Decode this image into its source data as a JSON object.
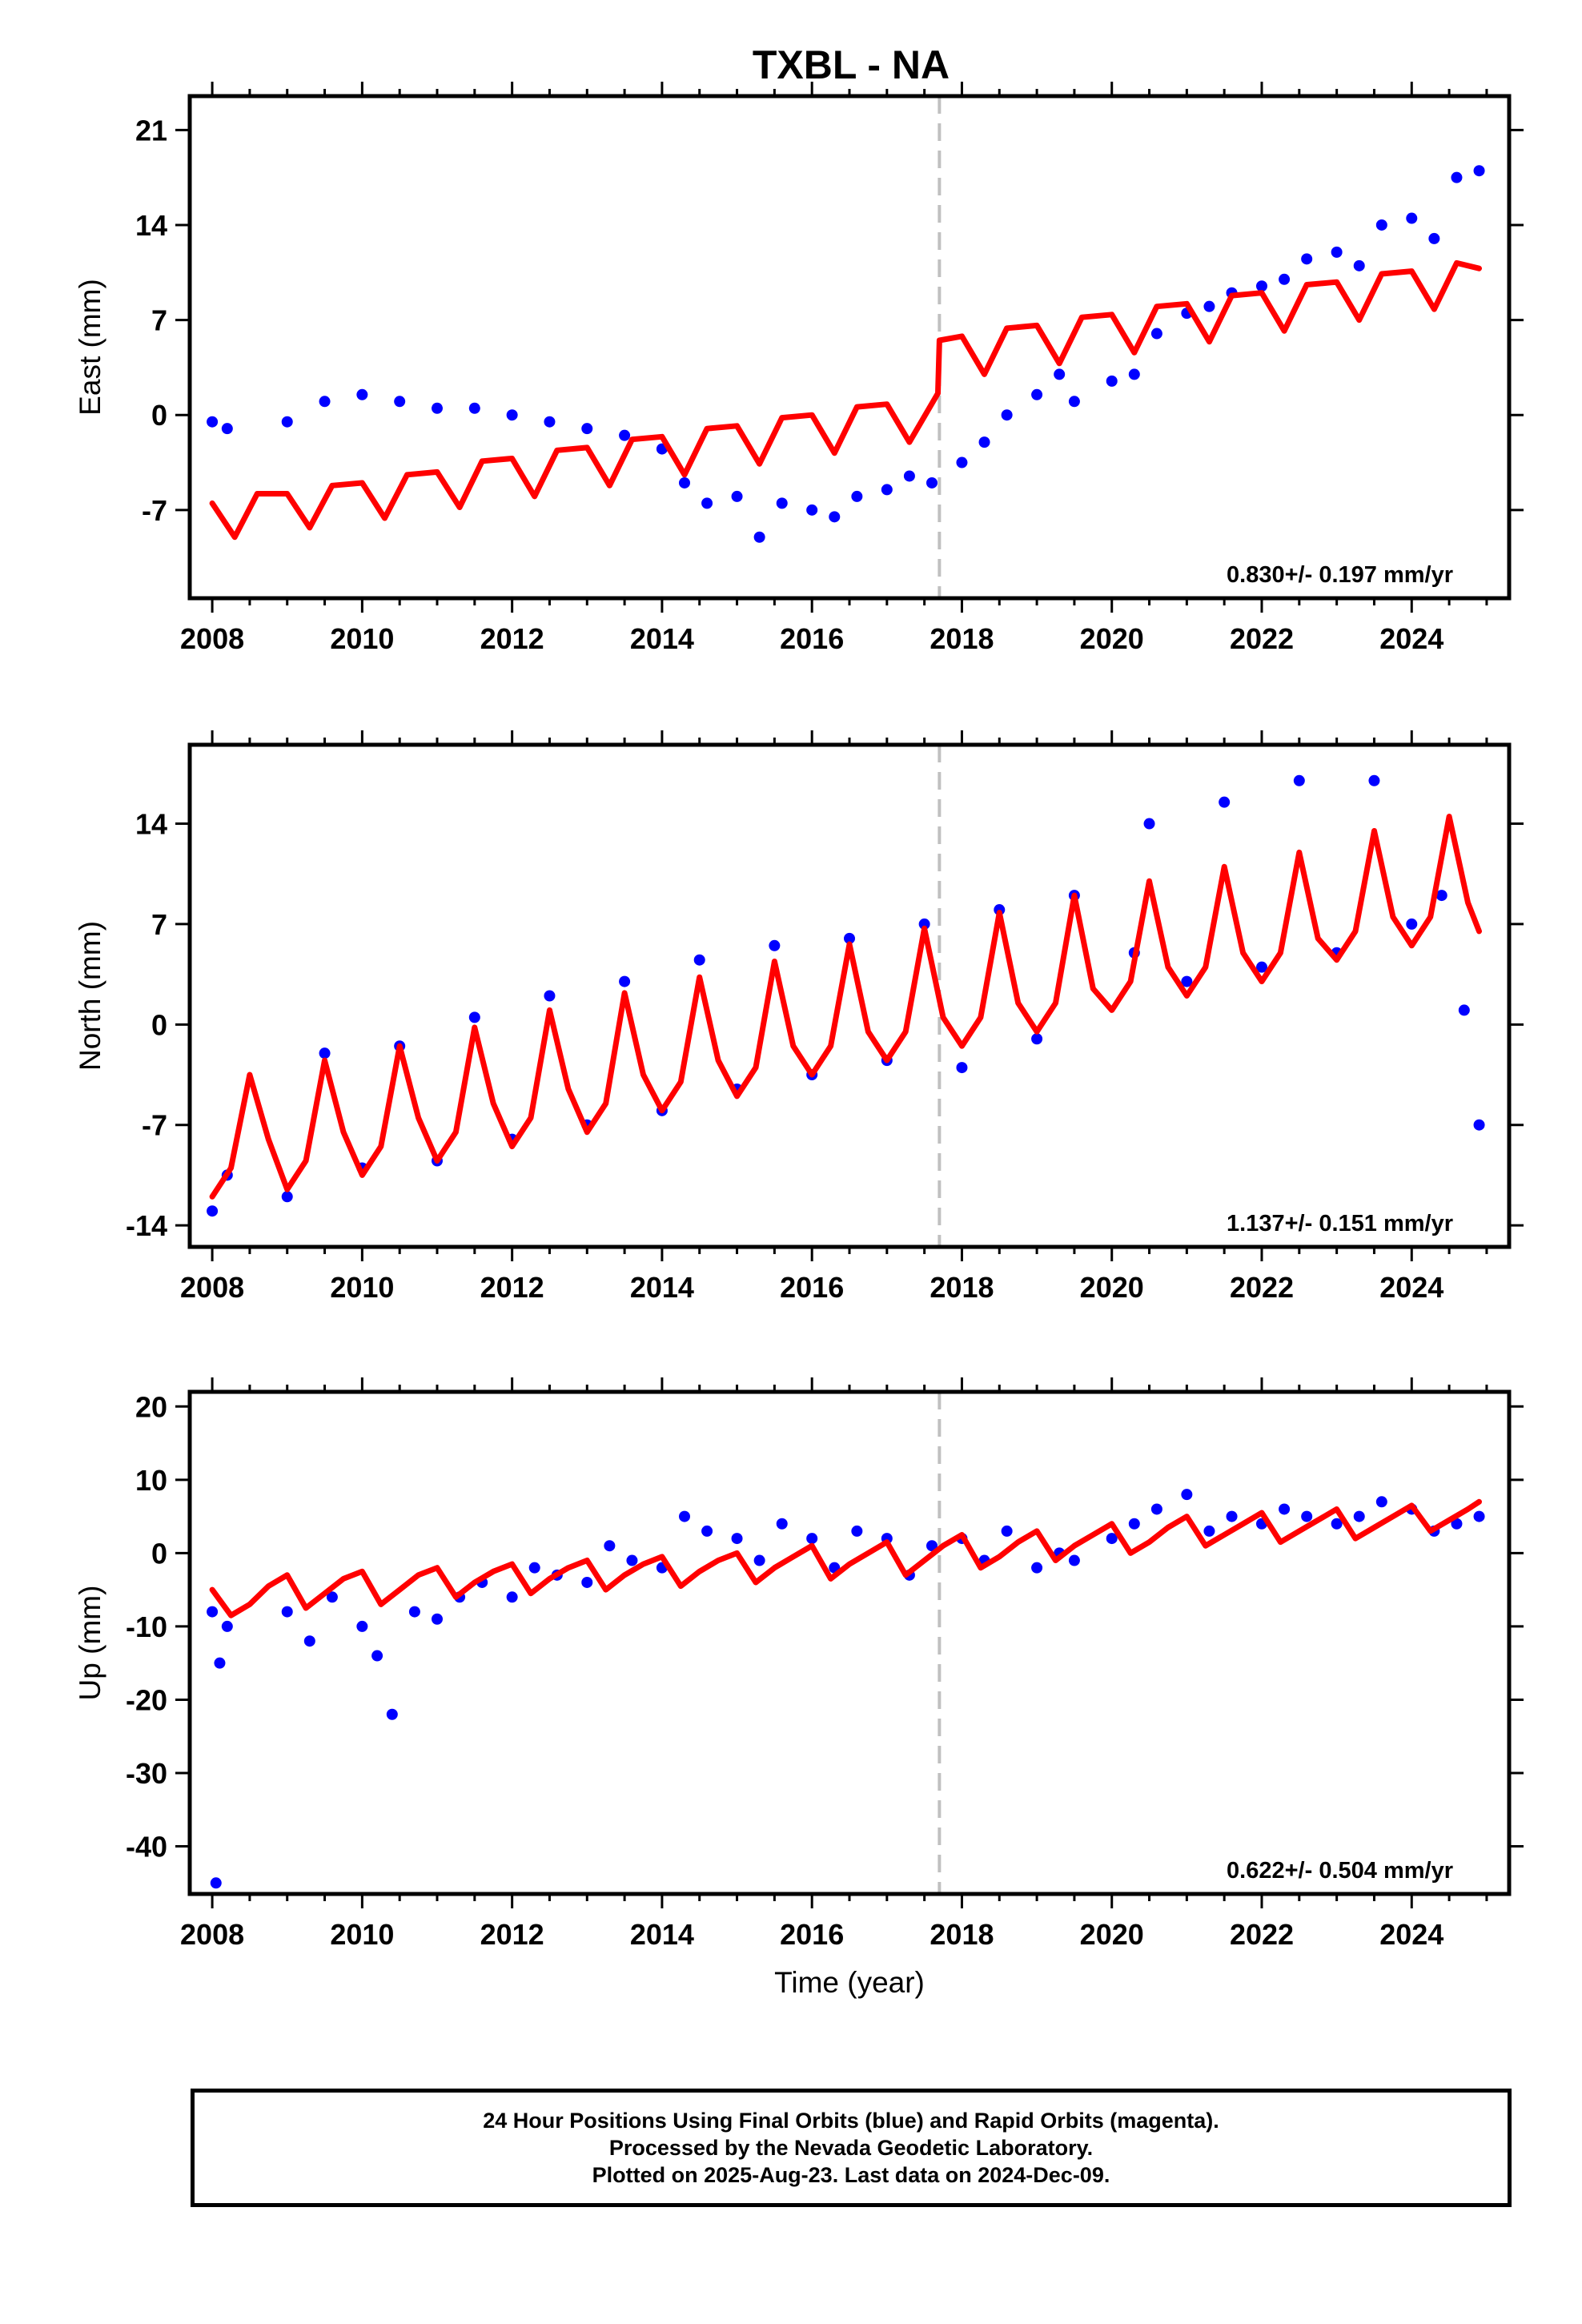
{
  "title": "TXBL - NA",
  "colors": {
    "points": "#0000ff",
    "model": "#ff0000",
    "offset_line": "#c0c0c0",
    "frame": "#000000"
  },
  "chart_data": [
    {
      "type": "scatter",
      "component": "east",
      "title": "TXBL - NA",
      "ylabel": "East (mm)",
      "xlabel": "",
      "xlim": [
        2007.7,
        2025.3
      ],
      "ylim": [
        -13.5,
        23.5
      ],
      "y_ticks": [
        "-7",
        "0",
        "7",
        "14",
        "21"
      ],
      "x_ticks": [
        "2008",
        "2010",
        "2012",
        "2014",
        "2016",
        "2018",
        "2020",
        "2022",
        "2024"
      ],
      "offset_epoch": 2017.7,
      "rate_label": "0.830+/- 0.197 mm/yr",
      "grid": false,
      "series": [
        {
          "role": "daily positions",
          "x": [
            2008.0,
            2008.2,
            2009.0,
            2009.5,
            2010.0,
            2010.5,
            2011.0,
            2011.5,
            2012.0,
            2012.5,
            2013.0,
            2013.5,
            2014.0,
            2014.3,
            2014.6,
            2015.0,
            2015.3,
            2015.6,
            2016.0,
            2016.3,
            2016.6,
            2017.0,
            2017.3,
            2017.6,
            2018.0,
            2018.3,
            2018.6,
            2019.0,
            2019.3,
            2019.5,
            2020.0,
            2020.3,
            2020.6,
            2021.0,
            2021.3,
            2021.6,
            2022.0,
            2022.3,
            2022.6,
            2023.0,
            2023.3,
            2023.6,
            2024.0,
            2024.3,
            2024.6,
            2024.9
          ],
          "y": [
            -0.5,
            -1.0,
            -0.5,
            1.0,
            1.5,
            1.0,
            0.5,
            0.5,
            0.0,
            -0.5,
            -1.0,
            -1.5,
            -2.5,
            -5.0,
            -6.5,
            -6.0,
            -9.0,
            -6.5,
            -7.0,
            -7.5,
            -6.0,
            -5.5,
            -4.5,
            -5.0,
            -3.5,
            -2.0,
            0.0,
            1.5,
            3.0,
            1.0,
            2.5,
            3.0,
            6.0,
            7.5,
            8.0,
            9.0,
            9.5,
            10.0,
            11.5,
            12.0,
            11.0,
            14.0,
            14.5,
            13.0,
            17.5,
            18.0
          ]
        },
        {
          "role": "model",
          "x": [
            2008.0,
            2008.3,
            2008.6,
            2009.0,
            2009.3,
            2009.6,
            2010.0,
            2010.3,
            2010.6,
            2011.0,
            2011.3,
            2011.6,
            2012.0,
            2012.3,
            2012.6,
            2013.0,
            2013.3,
            2013.6,
            2014.0,
            2014.3,
            2014.6,
            2015.0,
            2015.3,
            2015.6,
            2016.0,
            2016.3,
            2016.6,
            2017.0,
            2017.3,
            2017.68,
            2017.7,
            2018.0,
            2018.3,
            2018.6,
            2019.0,
            2019.3,
            2019.6,
            2020.0,
            2020.3,
            2020.6,
            2021.0,
            2021.3,
            2021.6,
            2022.0,
            2022.3,
            2022.6,
            2023.0,
            2023.3,
            2023.6,
            2024.0,
            2024.3,
            2024.6,
            2024.9
          ],
          "y": [
            -6.5,
            -9.0,
            -5.8,
            -5.8,
            -8.3,
            -5.2,
            -5.0,
            -7.6,
            -4.4,
            -4.2,
            -6.8,
            -3.4,
            -3.2,
            -6.0,
            -2.6,
            -2.4,
            -5.2,
            -1.8,
            -1.6,
            -4.4,
            -1.0,
            -0.8,
            -3.6,
            -0.2,
            0.0,
            -2.8,
            0.6,
            0.8,
            -2.0,
            1.6,
            5.5,
            5.8,
            3.0,
            6.4,
            6.6,
            3.8,
            7.2,
            7.4,
            4.6,
            8.0,
            8.2,
            5.4,
            8.8,
            9.0,
            6.2,
            9.6,
            9.8,
            7.0,
            10.4,
            10.6,
            7.8,
            11.2,
            10.8
          ]
        }
      ]
    },
    {
      "type": "scatter",
      "component": "north",
      "ylabel": "North (mm)",
      "xlabel": "",
      "xlim": [
        2007.7,
        2025.3
      ],
      "ylim": [
        -15.5,
        19.5
      ],
      "y_ticks": [
        "-14",
        "-7",
        "0",
        "7",
        "14"
      ],
      "x_ticks": [
        "2008",
        "2010",
        "2012",
        "2014",
        "2016",
        "2018",
        "2020",
        "2022",
        "2024"
      ],
      "offset_epoch": 2017.7,
      "rate_label": "1.137+/- 0.151 mm/yr",
      "grid": false,
      "series": [
        {
          "role": "daily positions",
          "x": [
            2008.0,
            2008.2,
            2009.0,
            2009.5,
            2010.0,
            2010.5,
            2011.0,
            2011.5,
            2012.0,
            2012.5,
            2013.0,
            2013.5,
            2014.0,
            2014.5,
            2015.0,
            2015.5,
            2016.0,
            2016.5,
            2017.0,
            2017.5,
            2018.0,
            2018.5,
            2019.0,
            2019.5,
            2020.3,
            2020.5,
            2021.0,
            2021.5,
            2022.0,
            2022.5,
            2023.0,
            2023.5,
            2024.0,
            2024.4,
            2024.7,
            2024.9
          ],
          "y": [
            -13.0,
            -10.5,
            -12.0,
            -2.0,
            -10.0,
            -1.5,
            -9.5,
            0.5,
            -8.0,
            2.0,
            -7.0,
            3.0,
            -6.0,
            4.5,
            -4.5,
            5.5,
            -3.5,
            6.0,
            -2.5,
            7.0,
            -3.0,
            8.0,
            -1.0,
            9.0,
            5.0,
            14.0,
            3.0,
            15.5,
            4.0,
            17.0,
            5.0,
            17.0,
            7.0,
            9.0,
            1.0,
            -7.0
          ]
        },
        {
          "role": "model",
          "x": [
            2008.0,
            2008.25,
            2008.5,
            2008.75,
            2009.0,
            2009.25,
            2009.5,
            2009.75,
            2010.0,
            2010.25,
            2010.5,
            2010.75,
            2011.0,
            2011.25,
            2011.5,
            2011.75,
            2012.0,
            2012.25,
            2012.5,
            2012.75,
            2013.0,
            2013.25,
            2013.5,
            2013.75,
            2014.0,
            2014.25,
            2014.5,
            2014.75,
            2015.0,
            2015.25,
            2015.5,
            2015.75,
            2016.0,
            2016.25,
            2016.5,
            2016.75,
            2017.0,
            2017.25,
            2017.5,
            2017.75,
            2018.0,
            2018.25,
            2018.5,
            2018.75,
            2019.0,
            2019.25,
            2019.5,
            2019.75,
            2020.0,
            2020.25,
            2020.5,
            2020.75,
            2021.0,
            2021.25,
            2021.5,
            2021.75,
            2022.0,
            2022.25,
            2022.5,
            2022.75,
            2023.0,
            2023.25,
            2023.5,
            2023.75,
            2024.0,
            2024.25,
            2024.5,
            2024.75,
            2024.9
          ],
          "y": [
            -12.0,
            -10.0,
            -3.5,
            -8.0,
            -11.5,
            -9.5,
            -2.5,
            -7.5,
            -10.5,
            -8.5,
            -1.5,
            -6.5,
            -9.5,
            -7.5,
            -0.2,
            -5.5,
            -8.5,
            -6.5,
            1.0,
            -4.5,
            -7.5,
            -5.5,
            2.2,
            -3.5,
            -6.0,
            -4.0,
            3.3,
            -2.5,
            -5.0,
            -3.0,
            4.4,
            -1.5,
            -3.5,
            -1.5,
            5.6,
            -0.5,
            -2.5,
            -0.5,
            6.7,
            0.5,
            -1.5,
            0.5,
            7.8,
            1.5,
            -0.5,
            1.5,
            9.0,
            2.5,
            1.0,
            3.0,
            10.0,
            4.0,
            2.0,
            4.0,
            11.0,
            5.0,
            3.0,
            5.0,
            12.0,
            6.0,
            4.5,
            6.5,
            13.5,
            7.5,
            5.5,
            7.5,
            14.5,
            8.5,
            6.5
          ]
        }
      ]
    },
    {
      "type": "scatter",
      "component": "up",
      "ylabel": "Up (mm)",
      "xlabel": "Time (year)",
      "xlim": [
        2007.7,
        2025.3
      ],
      "ylim": [
        -46.5,
        22
      ],
      "y_ticks": [
        "-40",
        "-30",
        "-20",
        "-10",
        "0",
        "10",
        "20"
      ],
      "x_ticks": [
        "2008",
        "2010",
        "2012",
        "2014",
        "2016",
        "2018",
        "2020",
        "2022",
        "2024"
      ],
      "offset_epoch": 2017.7,
      "rate_label": "0.622+/- 0.504 mm/yr",
      "grid": false,
      "series": [
        {
          "role": "daily positions",
          "x": [
            2008.0,
            2008.05,
            2008.1,
            2008.2,
            2009.0,
            2009.3,
            2009.6,
            2010.0,
            2010.2,
            2010.4,
            2010.7,
            2011.0,
            2011.3,
            2011.6,
            2012.0,
            2012.3,
            2012.6,
            2013.0,
            2013.3,
            2013.6,
            2014.0,
            2014.3,
            2014.6,
            2015.0,
            2015.3,
            2015.6,
            2016.0,
            2016.3,
            2016.6,
            2017.0,
            2017.3,
            2017.6,
            2018.0,
            2018.3,
            2018.6,
            2019.0,
            2019.3,
            2019.5,
            2020.0,
            2020.3,
            2020.6,
            2021.0,
            2021.3,
            2021.6,
            2022.0,
            2022.3,
            2022.6,
            2023.0,
            2023.3,
            2023.6,
            2024.0,
            2024.3,
            2024.6,
            2024.9
          ],
          "y": [
            -8.0,
            -45.0,
            -15.0,
            -10.0,
            -8.0,
            -12.0,
            -6.0,
            -10.0,
            -14.0,
            -22.0,
            -8.0,
            -9.0,
            -6.0,
            -4.0,
            -6.0,
            -2.0,
            -3.0,
            -4.0,
            1.0,
            -1.0,
            -2.0,
            5.0,
            3.0,
            2.0,
            -1.0,
            4.0,
            2.0,
            -2.0,
            3.0,
            2.0,
            -3.0,
            1.0,
            2.0,
            -1.0,
            3.0,
            -2.0,
            0.0,
            -1.0,
            2.0,
            4.0,
            6.0,
            8.0,
            3.0,
            5.0,
            4.0,
            6.0,
            5.0,
            4.0,
            5.0,
            7.0,
            6.0,
            3.0,
            4.0,
            5.0
          ]
        },
        {
          "role": "model",
          "x": [
            2008.0,
            2008.25,
            2008.5,
            2008.75,
            2009.0,
            2009.25,
            2009.5,
            2009.75,
            2010.0,
            2010.25,
            2010.5,
            2010.75,
            2011.0,
            2011.25,
            2011.5,
            2011.75,
            2012.0,
            2012.25,
            2012.5,
            2012.75,
            2013.0,
            2013.25,
            2013.5,
            2013.75,
            2014.0,
            2014.25,
            2014.5,
            2014.75,
            2015.0,
            2015.25,
            2015.5,
            2015.75,
            2016.0,
            2016.25,
            2016.5,
            2016.75,
            2017.0,
            2017.25,
            2017.5,
            2017.75,
            2018.0,
            2018.25,
            2018.5,
            2018.75,
            2019.0,
            2019.25,
            2019.5,
            2019.75,
            2020.0,
            2020.25,
            2020.5,
            2020.75,
            2021.0,
            2021.25,
            2021.5,
            2021.75,
            2022.0,
            2022.25,
            2022.5,
            2022.75,
            2023.0,
            2023.25,
            2023.5,
            2023.75,
            2024.0,
            2024.25,
            2024.5,
            2024.75,
            2024.9
          ],
          "y": [
            -5.0,
            -8.5,
            -7.0,
            -4.5,
            -3.0,
            -7.5,
            -5.5,
            -3.5,
            -2.5,
            -7.0,
            -5.0,
            -3.0,
            -2.0,
            -6.0,
            -4.0,
            -2.5,
            -1.5,
            -5.5,
            -3.5,
            -2.0,
            -1.0,
            -5.0,
            -3.0,
            -1.5,
            -0.5,
            -4.5,
            -2.5,
            -1.0,
            0.0,
            -4.0,
            -2.0,
            -0.5,
            1.0,
            -3.5,
            -1.5,
            0.0,
            1.5,
            -3.0,
            -1.0,
            1.0,
            2.5,
            -2.0,
            -0.5,
            1.5,
            3.0,
            -1.0,
            1.0,
            2.5,
            4.0,
            0.0,
            1.5,
            3.5,
            5.0,
            1.0,
            2.5,
            4.0,
            5.5,
            1.5,
            3.0,
            4.5,
            6.0,
            2.0,
            3.5,
            5.0,
            6.5,
            3.0,
            4.5,
            6.0,
            7.0
          ]
        }
      ]
    }
  ],
  "caption": {
    "line1": "24 Hour Positions Using Final Orbits (blue) and Rapid Orbits (magenta).",
    "line2": "Processed by the Nevada Geodetic Laboratory.",
    "line3": "Plotted on 2025-Aug-23. Last data on 2024-Dec-09."
  }
}
